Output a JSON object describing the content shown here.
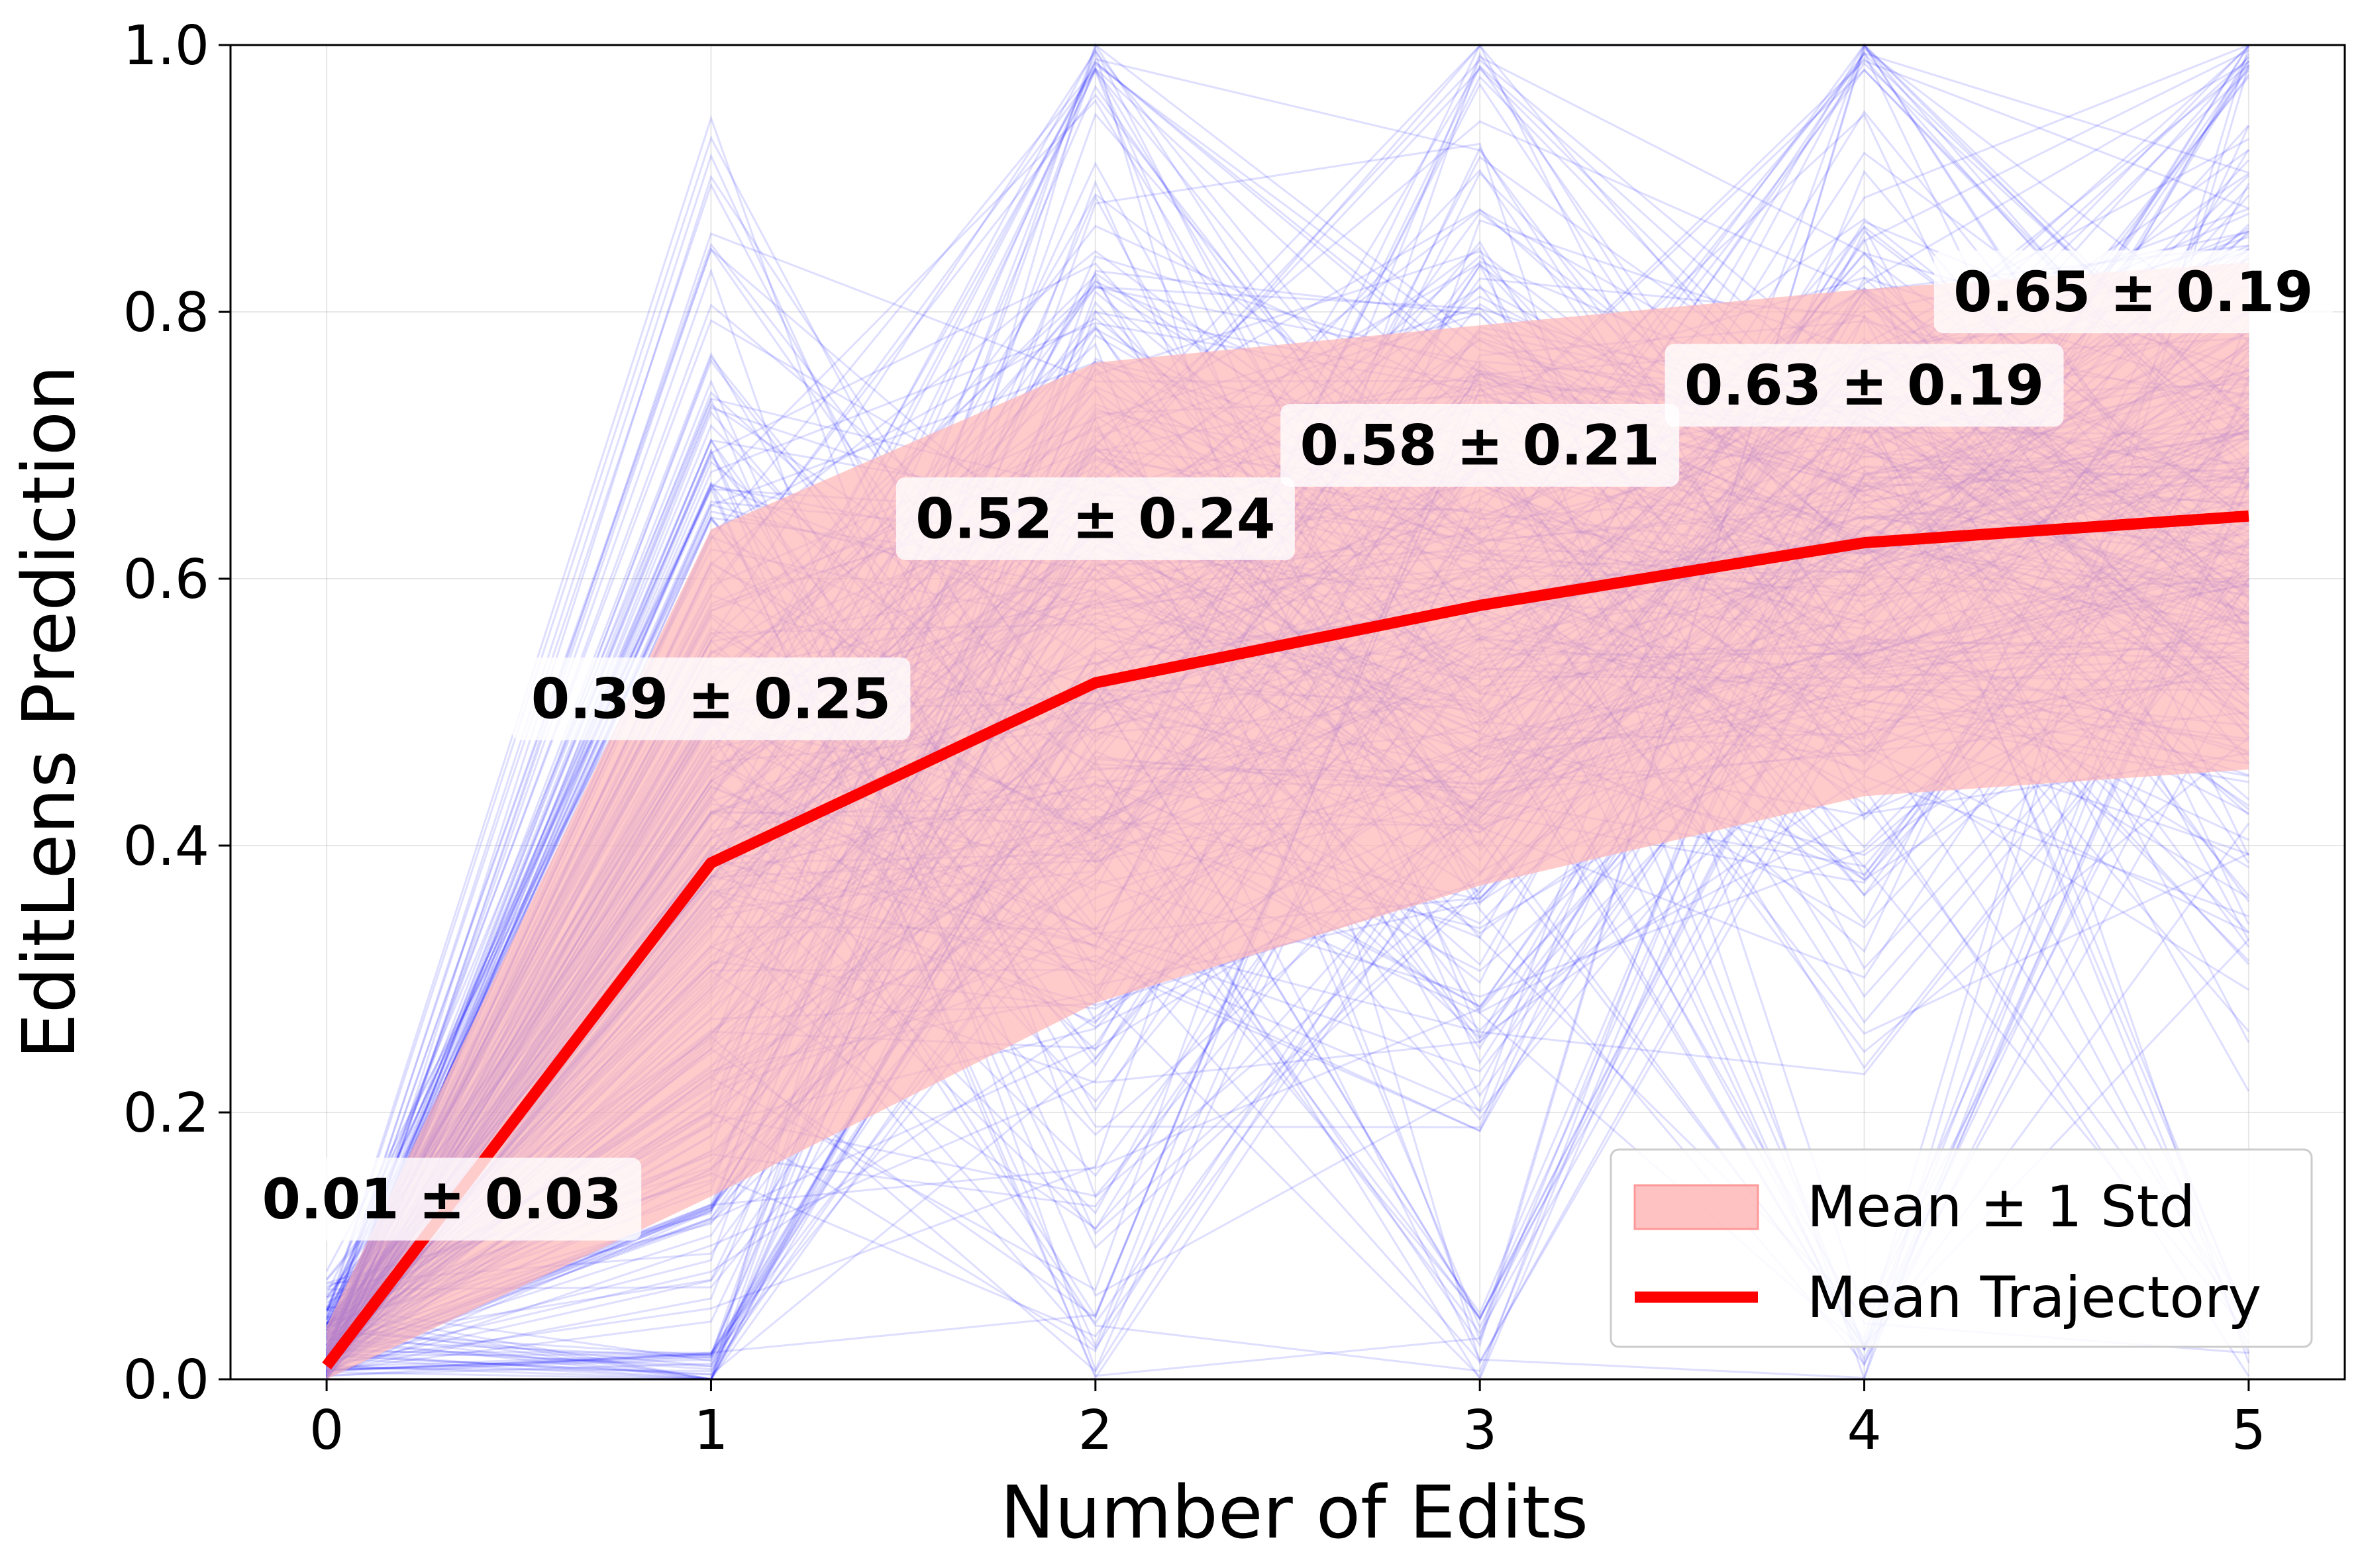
{
  "chart_data": {
    "type": "line",
    "title": "",
    "xlabel": "Number of Edits",
    "ylabel": "EditLens Prediction",
    "xlim": [
      -0.25,
      5.25
    ],
    "ylim": [
      0.0,
      1.0
    ],
    "x_ticks": [
      "0",
      "1",
      "2",
      "3",
      "4",
      "5"
    ],
    "y_ticks": [
      "0.0",
      "0.2",
      "0.4",
      "0.6",
      "0.8",
      "1.0"
    ],
    "grid": true,
    "x": [
      0,
      1,
      2,
      3,
      4,
      5
    ],
    "series": [
      {
        "name": "Mean Trajectory",
        "color": "#ff0000",
        "mean": [
          0.01,
          0.387,
          0.522,
          0.58,
          0.627,
          0.647
        ],
        "std": [
          0.03,
          0.25,
          0.24,
          0.21,
          0.19,
          0.19
        ]
      }
    ],
    "band": {
      "name": "Mean ± 1 Std",
      "color": "#ffb3b3"
    },
    "individual_trajectories": {
      "color": "#0000ff",
      "count_shown": "many"
    },
    "annotations": [
      "0.01 ± 0.03",
      "0.39 ± 0.25",
      "0.52 ± 0.24",
      "0.58 ± 0.21",
      "0.63 ± 0.19",
      "0.65 ± 0.19"
    ],
    "legend": {
      "placement": "lower-right",
      "entries": [
        "Mean ± 1 Std",
        "Mean Trajectory"
      ]
    }
  }
}
